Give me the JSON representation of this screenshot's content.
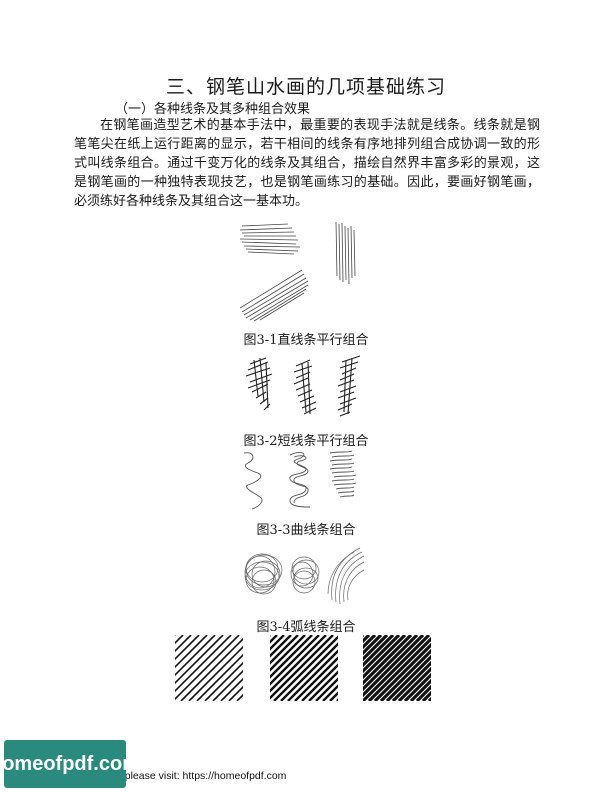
{
  "document": {
    "title": "三、钢笔山水画的几项基础练习",
    "subtitle": "（一）各种线条及其多种组合效果",
    "paragraph": "在钢笔画造型艺术的基本手法中，最重要的表现手法就是线条。线条就是钢笔笔尖在纸上运行距离的显示，若干相间的线条有序地排列组合成协调一致的形式叫线条组合。通过千变万化的线条及其组合，描绘自然界丰富多彩的景观，这是钢笔画的一种独特表现技艺，也是钢笔画练习的基础。因此，要画好钢笔画，必须练好各种线条及其组合这一基本功。"
  },
  "figures": [
    {
      "caption": "图3-1直线条平行组合"
    },
    {
      "caption": "图3-2短线条平行组合"
    },
    {
      "caption": "图3-3曲线条组合"
    },
    {
      "caption": "图3-4弧线条组合"
    }
  ],
  "footer": {
    "badge": "homeofpdf.com",
    "text": "e please visit: https://homeofpdf.com"
  }
}
